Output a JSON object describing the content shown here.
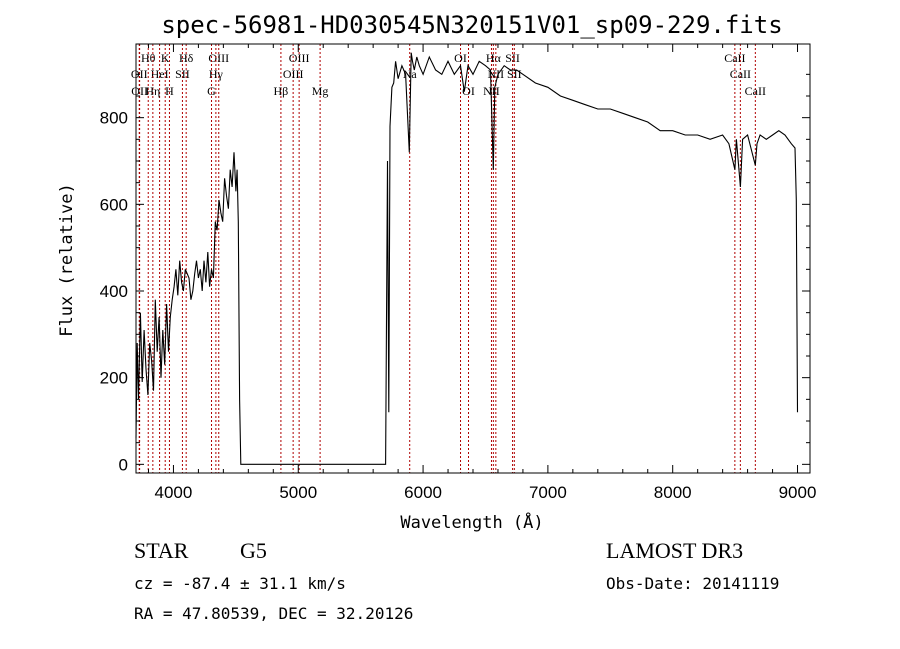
{
  "chart_data": {
    "type": "line",
    "title": "spec-56981-HD030545N320151V01_sp09-229.fits",
    "xlabel": "Wavelength (Å)",
    "ylabel": "Flux (relative)",
    "xlim": [
      3700,
      9100
    ],
    "ylim": [
      -20,
      970
    ],
    "xticks": [
      4000,
      5000,
      6000,
      7000,
      8000,
      9000
    ],
    "yticks": [
      0,
      200,
      400,
      600,
      800
    ],
    "series": [
      {
        "name": "flux",
        "x": [
          3700,
          3710,
          3720,
          3735,
          3750,
          3765,
          3780,
          3795,
          3810,
          3825,
          3840,
          3855,
          3870,
          3885,
          3900,
          3915,
          3930,
          3945,
          3960,
          3975,
          3990,
          4005,
          4020,
          4035,
          4050,
          4065,
          4080,
          4095,
          4110,
          4125,
          4140,
          4155,
          4170,
          4185,
          4200,
          4215,
          4230,
          4245,
          4260,
          4275,
          4290,
          4305,
          4320,
          4335,
          4350,
          4365,
          4380,
          4395,
          4410,
          4425,
          4440,
          4455,
          4470,
          4485,
          4500,
          4510,
          4520,
          4530,
          4540,
          4545,
          4550,
          4555,
          5680,
          5700,
          5715,
          5725,
          5735,
          5750,
          5765,
          5780,
          5800,
          5830,
          5860,
          5890,
          5905,
          5915,
          5930,
          5950,
          5970,
          6000,
          6050,
          6100,
          6150,
          6200,
          6250,
          6300,
          6330,
          6360,
          6400,
          6450,
          6500,
          6540,
          6563,
          6575,
          6600,
          6650,
          6700,
          6750,
          6800,
          6900,
          7000,
          7100,
          7200,
          7300,
          7400,
          7500,
          7600,
          7700,
          7800,
          7900,
          8000,
          8100,
          8200,
          8300,
          8400,
          8450,
          8498,
          8510,
          8542,
          8560,
          8600,
          8662,
          8675,
          8700,
          8750,
          8800,
          8850,
          8900,
          8950,
          8980,
          8990,
          9000
        ],
        "values": [
          60,
          280,
          150,
          350,
          190,
          310,
          220,
          160,
          280,
          240,
          170,
          380,
          260,
          340,
          200,
          310,
          230,
          370,
          260,
          340,
          380,
          410,
          450,
          390,
          470,
          420,
          400,
          450,
          440,
          430,
          380,
          400,
          440,
          470,
          430,
          450,
          400,
          470,
          420,
          490,
          410,
          450,
          430,
          560,
          540,
          610,
          580,
          560,
          660,
          620,
          590,
          680,
          640,
          720,
          630,
          680,
          560,
          150,
          0,
          0,
          0,
          0,
          0,
          0,
          700,
          120,
          780,
          870,
          880,
          930,
          890,
          920,
          900,
          720,
          950,
          930,
          910,
          940,
          920,
          900,
          940,
          910,
          900,
          930,
          900,
          920,
          860,
          920,
          900,
          930,
          920,
          910,
          680,
          870,
          900,
          920,
          910,
          910,
          900,
          880,
          870,
          850,
          840,
          830,
          820,
          820,
          810,
          800,
          790,
          770,
          770,
          760,
          760,
          750,
          760,
          740,
          680,
          750,
          640,
          750,
          760,
          690,
          740,
          760,
          750,
          760,
          770,
          760,
          740,
          730,
          610,
          120
        ]
      }
    ],
    "lines": [
      {
        "label": "Hθ",
        "wl": 3798,
        "row": 1
      },
      {
        "label": "OII",
        "wl": 3726,
        "row": 2
      },
      {
        "label": "OII",
        "wl": 3729,
        "row": 3
      },
      {
        "label": "HeI",
        "wl": 3889,
        "row": 2
      },
      {
        "label": "Hη",
        "wl": 3835,
        "row": 3
      },
      {
        "label": "K",
        "wl": 3934,
        "row": 1
      },
      {
        "label": "SII",
        "wl": 4072,
        "row": 2
      },
      {
        "label": "H",
        "wl": 3968,
        "row": 3
      },
      {
        "label": "Hδ",
        "wl": 4102,
        "row": 1
      },
      {
        "label": "OIII",
        "wl": 4363,
        "row": 1
      },
      {
        "label": "Hγ",
        "wl": 4340,
        "row": 2
      },
      {
        "label": "G",
        "wl": 4305,
        "row": 3
      },
      {
        "label": "Hβ",
        "wl": 4861,
        "row": 3
      },
      {
        "label": "OIII",
        "wl": 4959,
        "row": 2
      },
      {
        "label": "OIII",
        "wl": 5007,
        "row": 1
      },
      {
        "label": "Mg",
        "wl": 5175,
        "row": 3
      },
      {
        "label": "Na",
        "wl": 5893,
        "row": 2
      },
      {
        "label": "OI",
        "wl": 6300,
        "row": 1
      },
      {
        "label": "OI",
        "wl": 6364,
        "row": 3
      },
      {
        "label": "Hα",
        "wl": 6563,
        "row": 1
      },
      {
        "label": "NII",
        "wl": 6548,
        "row": 3
      },
      {
        "label": "NII",
        "wl": 6583,
        "row": 2
      },
      {
        "label": "SII",
        "wl": 6717,
        "row": 1
      },
      {
        "label": "SII",
        "wl": 6731,
        "row": 2
      },
      {
        "label": "CaII",
        "wl": 8498,
        "row": 1
      },
      {
        "label": "CaII",
        "wl": 8542,
        "row": 2
      },
      {
        "label": "CaII",
        "wl": 8662,
        "row": 3
      }
    ]
  },
  "info": {
    "class": "STAR",
    "subclass": "G5",
    "survey": "LAMOST DR3",
    "cz": "cz = -87.4 ± 31.1 km/s",
    "obs_date": "Obs-Date: 20141119",
    "radec": "RA =  47.80539, DEC =  32.20126"
  },
  "colors": {
    "line": "#000000",
    "marker": "#b00000"
  }
}
